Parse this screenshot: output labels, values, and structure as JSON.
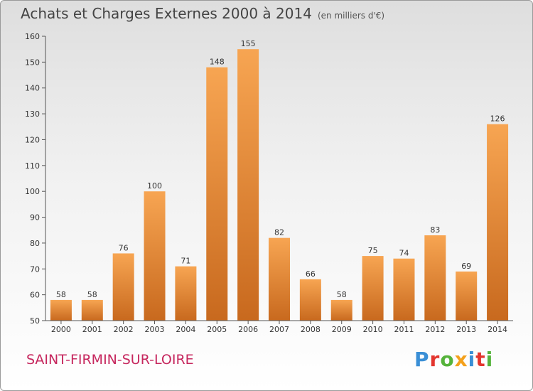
{
  "header": {
    "title": "Achats et Charges Externes 2000 à 2014",
    "unit": "(en milliers d'€)"
  },
  "footer": {
    "commune": "SAINT-FIRMIN-SUR-LOIRE",
    "brand": "Proxiti"
  },
  "colors": {
    "bar_light": "#f7a552",
    "bar_dark": "#c8691e",
    "commune_text": "#c6275e",
    "brand_letters": [
      "#3a8fd6",
      "#e3352e",
      "#55b33b",
      "#f4a11c",
      "#3a8fd6",
      "#e3352e",
      "#55b33b"
    ]
  },
  "chart_data": {
    "type": "bar",
    "categories": [
      "2000",
      "2001",
      "2002",
      "2003",
      "2004",
      "2005",
      "2006",
      "2007",
      "2008",
      "2009",
      "2010",
      "2011",
      "2012",
      "2013",
      "2014"
    ],
    "values": [
      58,
      58,
      76,
      100,
      71,
      148,
      155,
      82,
      66,
      58,
      75,
      74,
      83,
      69,
      126
    ],
    "title": "Achats et Charges Externes 2000 à 2014",
    "xlabel": "",
    "ylabel": "",
    "ylim": [
      50,
      160
    ],
    "yticks": [
      50,
      60,
      70,
      80,
      90,
      100,
      110,
      120,
      130,
      140,
      150,
      160
    ],
    "grid": false
  }
}
